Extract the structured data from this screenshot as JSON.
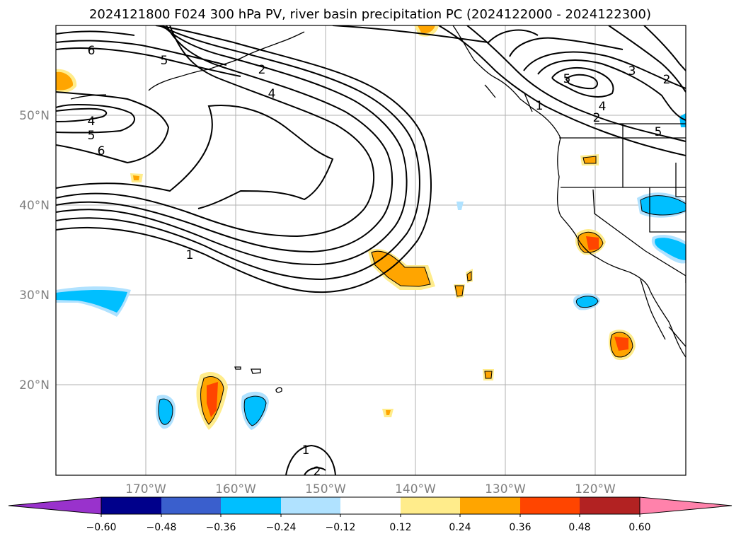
{
  "title": "2024121800 F024 300 hPa PV, river basin precipitation PC (2024122000 - 2024122300)",
  "map": {
    "lon_range": [
      -180,
      -110
    ],
    "lat_range": [
      10,
      60
    ],
    "lon_ticks": [
      "170°W",
      "160°W",
      "150°W",
      "140°W",
      "130°W",
      "120°W"
    ],
    "lat_ticks": [
      "50°N",
      "40°N",
      "30°N",
      "20°N"
    ],
    "grid": true
  },
  "pv_contour_labels": [
    "6",
    "5",
    "2",
    "4",
    "4",
    "5",
    "6",
    "1",
    "1",
    "2",
    "5",
    "3",
    "2",
    "4",
    "5",
    "2",
    "1"
  ],
  "colorbar": {
    "ticks": [
      "−0.60",
      "−0.48",
      "−0.36",
      "−0.24",
      "−0.12",
      "0.12",
      "0.24",
      "0.36",
      "0.48",
      "0.60"
    ],
    "colors": [
      "#9932cc",
      "#00008b",
      "#3a5fcd",
      "#00bfff",
      "#b0e2ff",
      "#ffffff",
      "#ffec8b",
      "#ffa500",
      "#ff4500",
      "#b22222",
      "#ff82ab"
    ]
  }
}
